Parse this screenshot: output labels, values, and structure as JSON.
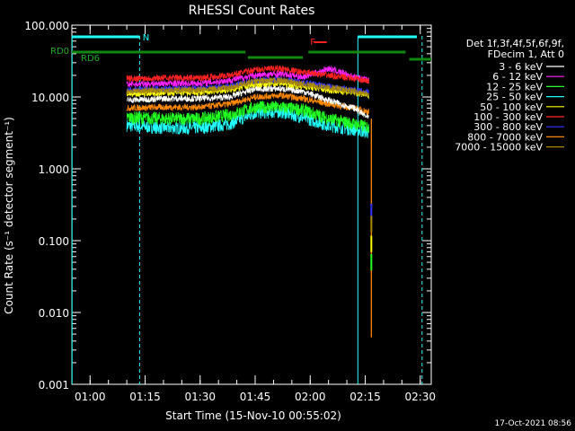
{
  "chart_data": {
    "type": "line",
    "title": "RHESSI Count Rates",
    "xlabel": "Start Time (15-Nov-10 00:55:02)",
    "ylabel": "Count Rate (s⁻¹ detector segment⁻¹)",
    "yscale": "log",
    "ylim": [
      0.001,
      100
    ],
    "xlim": [
      "00:55:02",
      "02:33:00"
    ],
    "x_ticks": [
      "01:00",
      "01:15",
      "01:30",
      "01:45",
      "02:00",
      "02:15",
      "02:30"
    ],
    "y_ticks": [
      "0.001",
      "0.010",
      "0.100",
      "1.000",
      "10.000",
      "100.000"
    ],
    "legend_header": [
      "Det 1f,3f,4f,5f,6f,9f,",
      "FDecim 1, Att 0"
    ],
    "legend_position": "right",
    "series": [
      {
        "name": "3 - 6 keV",
        "color": "#ffffff",
        "x": [
          "01:10",
          "01:20",
          "01:30",
          "01:38",
          "01:45",
          "01:52",
          "01:58",
          "02:05",
          "02:12",
          "02:16"
        ],
        "y": [
          9.0,
          9.5,
          9.5,
          10.0,
          13.0,
          13.0,
          12.0,
          9.0,
          7.0,
          5.0
        ]
      },
      {
        "name": "6 - 12 keV",
        "color": "#ff22ff",
        "x": [
          "01:10",
          "01:20",
          "01:30",
          "01:38",
          "01:45",
          "01:52",
          "01:58",
          "02:02",
          "02:05",
          "02:12",
          "02:16"
        ],
        "y": [
          15.0,
          15.5,
          15.5,
          17.0,
          20.0,
          21.0,
          19.0,
          22.0,
          25.0,
          19.0,
          17.0
        ]
      },
      {
        "name": "12 - 25 keV",
        "color": "#22ff22",
        "x": [
          "01:10",
          "01:20",
          "01:30",
          "01:38",
          "01:45",
          "01:52",
          "01:58",
          "02:05",
          "02:12",
          "02:16"
        ],
        "y": [
          5.2,
          5.0,
          5.0,
          5.6,
          7.2,
          7.2,
          6.6,
          5.0,
          4.2,
          3.8
        ]
      },
      {
        "name": "25 - 50 keV",
        "color": "#22ffff",
        "x": [
          "01:10",
          "01:20",
          "01:30",
          "01:38",
          "01:45",
          "01:52",
          "01:58",
          "02:05",
          "02:12",
          "02:16"
        ],
        "y": [
          4.0,
          3.7,
          3.7,
          4.2,
          6.0,
          6.2,
          5.2,
          4.0,
          3.5,
          3.2
        ]
      },
      {
        "name": "50 - 100 keV",
        "color": "#ffff00",
        "x": [
          "01:10",
          "01:20",
          "01:30",
          "01:38",
          "01:45",
          "01:52",
          "01:58",
          "02:05",
          "02:12",
          "02:16"
        ],
        "y": [
          11.0,
          11.5,
          11.5,
          12.5,
          15.0,
          15.5,
          14.0,
          12.5,
          11.5,
          10.5
        ]
      },
      {
        "name": "100 - 300 keV",
        "color": "#ff2222",
        "x": [
          "01:10",
          "01:20",
          "01:30",
          "01:38",
          "01:45",
          "01:52",
          "01:58",
          "02:05",
          "02:12",
          "02:16"
        ],
        "y": [
          18.0,
          18.5,
          18.5,
          20.0,
          24.0,
          25.0,
          22.0,
          20.0,
          18.0,
          16.5
        ]
      },
      {
        "name": "300 - 800 keV",
        "color": "#3333ff",
        "x": [
          "01:10",
          "01:20",
          "01:30",
          "01:38",
          "01:45",
          "01:52",
          "01:58",
          "02:05",
          "02:12",
          "02:16"
        ],
        "y": [
          12.5,
          13.0,
          13.0,
          14.0,
          17.0,
          17.5,
          16.0,
          14.0,
          12.5,
          11.5
        ]
      },
      {
        "name": "800 - 7000 keV",
        "color": "#ff8800",
        "x": [
          "01:10",
          "01:20",
          "01:30",
          "01:38",
          "01:45",
          "01:52",
          "01:58",
          "02:05",
          "02:12",
          "02:16"
        ],
        "y": [
          7.0,
          7.2,
          7.2,
          8.0,
          10.0,
          10.5,
          9.5,
          8.0,
          7.0,
          6.2
        ]
      },
      {
        "name": "7000 - 15000 keV",
        "color": "#aa8800",
        "x": [
          "01:10",
          "01:20",
          "01:30",
          "01:38",
          "01:45",
          "01:52",
          "01:58",
          "02:05",
          "02:12",
          "02:16"
        ],
        "y": [
          12.0,
          12.5,
          12.5,
          13.5,
          16.5,
          17.0,
          15.0,
          13.5,
          12.0,
          11.0
        ]
      }
    ],
    "annotations": [
      {
        "text": "N",
        "color": "#22ffff"
      },
      {
        "text": "F",
        "color": "#ff2222"
      },
      {
        "text": "RD0",
        "color": "#22aa22"
      },
      {
        "text": "RD6",
        "color": "#22aa22"
      }
    ],
    "footer_date": "17-Oct-2021 08:56"
  }
}
